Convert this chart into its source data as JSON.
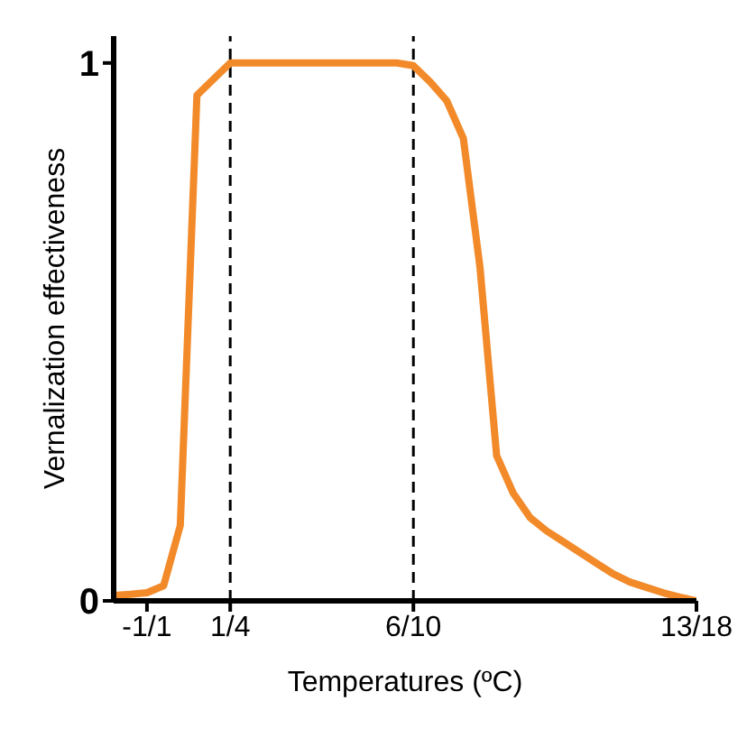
{
  "chart_data": {
    "type": "line",
    "xlabel": "Temperatures (ºC)",
    "ylabel": "Vernalization effectiveness",
    "categories": [
      null,
      null,
      "-1/1",
      null,
      null,
      null,
      null,
      "1/4",
      null,
      null,
      null,
      null,
      null,
      null,
      null,
      null,
      null,
      null,
      "6/10",
      null,
      null,
      null,
      null,
      null,
      null,
      null,
      null,
      null,
      null,
      null,
      null,
      null,
      null,
      null,
      null,
      "13/18"
    ],
    "series": [
      {
        "color": "#f28a2a",
        "values": [
          0.01,
          0.012,
          0.015,
          0.028,
          0.14,
          0.94,
          0.97,
          1,
          1,
          1,
          1,
          1,
          1,
          1,
          1,
          1,
          1,
          1,
          0.995,
          0.965,
          0.93,
          0.86,
          0.62,
          0.27,
          0.2,
          0.155,
          0.13,
          0.11,
          0.09,
          0.07,
          0.05,
          0.035,
          0.025,
          0.015,
          0.007,
          0
        ]
      }
    ],
    "ylim": [
      0,
      1.05
    ],
    "yticks": [
      0,
      1
    ],
    "grid": false,
    "legend": false,
    "marker": "none",
    "line_style": "solid",
    "ref_lines": [
      {
        "axis": "x",
        "value": "1/4",
        "color": "#000000",
        "line_style": "dashed"
      },
      {
        "axis": "x",
        "value": "6/10",
        "color": "#000000",
        "line_style": "dashed"
      }
    ]
  }
}
